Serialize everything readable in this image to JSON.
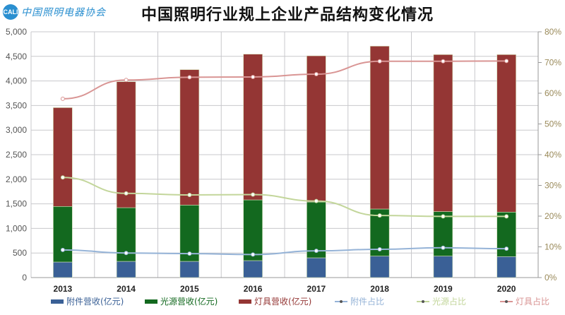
{
  "logo": {
    "mark": "CALI",
    "text": "中国照明电器协会"
  },
  "chart_data": {
    "type": "bar",
    "title": "中国照明行业规上企业产品结构变化情况",
    "categories": [
      "2013",
      "2014",
      "2015",
      "2016",
      "2017",
      "2018",
      "2019",
      "2020"
    ],
    "y_left": {
      "range": [
        0,
        5000
      ],
      "ticks": [
        "0",
        "500",
        "1,000",
        "1,500",
        "2,000",
        "2,500",
        "3,000",
        "3,500",
        "4,000",
        "4,500",
        "5,000"
      ],
      "step": 500
    },
    "y_right": {
      "range": [
        0,
        80
      ],
      "ticks": [
        "0%",
        "10%",
        "20%",
        "30%",
        "40%",
        "50%",
        "60%",
        "70%",
        "80%"
      ],
      "step": 10
    },
    "grid": true,
    "legend_position": "bottom",
    "bar_series": [
      {
        "name": "附件营收(亿元)",
        "color": "#3a6096",
        "values": [
          316,
          330,
          330,
          345,
          402,
          437,
          437,
          427
        ]
      },
      {
        "name": "光源营收(亿元)",
        "color": "#13691f",
        "values": [
          1131,
          1092,
          1145,
          1235,
          1135,
          957,
          905,
          905
        ]
      },
      {
        "name": "灯具营收(亿元)",
        "color": "#943634",
        "values": [
          2010,
          2563,
          2755,
          2965,
          2974,
          3314,
          3194,
          3204
        ]
      }
    ],
    "line_series": [
      {
        "name": "附件占比",
        "color": "#95b3d7",
        "values": [
          9.0,
          8.0,
          7.8,
          7.5,
          8.7,
          9.2,
          9.7,
          9.4
        ]
      },
      {
        "name": "光源占比",
        "color": "#c3d69b",
        "values": [
          32.6,
          27.4,
          26.9,
          27.0,
          24.9,
          20.2,
          19.9,
          19.9
        ]
      },
      {
        "name": "灯具占比",
        "color": "#d99594",
        "values": [
          58.2,
          64.3,
          65.2,
          65.3,
          66.2,
          70.4,
          70.4,
          70.5
        ]
      }
    ]
  }
}
